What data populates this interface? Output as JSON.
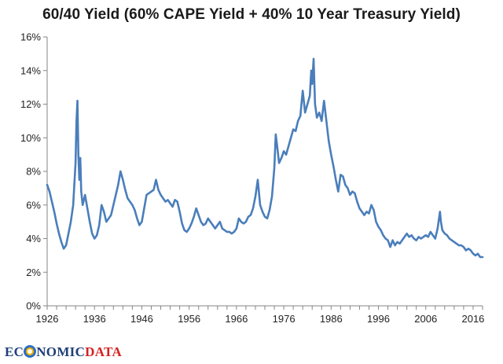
{
  "chart_data": {
    "type": "line",
    "title": "60/40 Yield (60% CAPE Yield + 40% 10 Year Treasury Yield)",
    "xlabel": "",
    "ylabel": "",
    "xlim": [
      1926,
      2018
    ],
    "ylim": [
      0,
      16
    ],
    "y_ticks": [
      0,
      2,
      4,
      6,
      8,
      10,
      12,
      14,
      16
    ],
    "y_tick_labels": [
      "0%",
      "2%",
      "4%",
      "6%",
      "8%",
      "10%",
      "12%",
      "14%",
      "16%"
    ],
    "x_ticks": [
      1926,
      1936,
      1946,
      1956,
      1966,
      1976,
      1986,
      1996,
      2006,
      2016
    ],
    "x_tick_labels": [
      "1926",
      "1936",
      "1946",
      "1956",
      "1966",
      "1976",
      "1986",
      "1996",
      "2006",
      "2016"
    ],
    "grid": false,
    "line_color": "#4a7ebb",
    "series": [
      {
        "name": "60/40 Yield",
        "x": [
          1926.0,
          1926.5,
          1927.0,
          1927.5,
          1928.0,
          1928.5,
          1929.0,
          1929.5,
          1930.0,
          1930.5,
          1931.0,
          1931.5,
          1932.0,
          1932.2,
          1932.4,
          1932.6,
          1932.8,
          1933.0,
          1933.2,
          1933.5,
          1934.0,
          1934.5,
          1935.0,
          1935.5,
          1936.0,
          1936.5,
          1937.0,
          1937.5,
          1938.0,
          1938.5,
          1939.0,
          1939.5,
          1940.0,
          1940.5,
          1941.0,
          1941.5,
          1942.0,
          1942.5,
          1943.0,
          1943.5,
          1944.0,
          1944.5,
          1945.0,
          1945.5,
          1946.0,
          1946.5,
          1947.0,
          1947.5,
          1948.0,
          1948.5,
          1949.0,
          1949.5,
          1950.0,
          1950.5,
          1951.0,
          1951.5,
          1952.0,
          1952.5,
          1953.0,
          1953.5,
          1954.0,
          1954.5,
          1955.0,
          1955.5,
          1956.0,
          1956.5,
          1957.0,
          1957.5,
          1958.0,
          1958.5,
          1959.0,
          1959.5,
          1960.0,
          1960.5,
          1961.0,
          1961.5,
          1962.0,
          1962.5,
          1963.0,
          1963.5,
          1964.0,
          1964.5,
          1965.0,
          1965.5,
          1966.0,
          1966.5,
          1967.0,
          1967.5,
          1968.0,
          1968.5,
          1969.0,
          1969.5,
          1970.0,
          1970.5,
          1971.0,
          1971.5,
          1972.0,
          1972.5,
          1973.0,
          1973.5,
          1974.0,
          1974.3,
          1974.6,
          1975.0,
          1975.5,
          1976.0,
          1976.5,
          1977.0,
          1977.5,
          1978.0,
          1978.5,
          1979.0,
          1979.5,
          1980.0,
          1980.5,
          1981.0,
          1981.5,
          1981.8,
          1982.0,
          1982.3,
          1982.6,
          1983.0,
          1983.5,
          1984.0,
          1984.5,
          1985.0,
          1985.5,
          1986.0,
          1986.5,
          1987.0,
          1987.5,
          1988.0,
          1988.5,
          1989.0,
          1989.5,
          1990.0,
          1990.5,
          1991.0,
          1991.5,
          1992.0,
          1992.5,
          1993.0,
          1993.5,
          1994.0,
          1994.5,
          1995.0,
          1995.5,
          1996.0,
          1996.5,
          1997.0,
          1997.5,
          1998.0,
          1998.5,
          1999.0,
          1999.5,
          2000.0,
          2000.5,
          2001.0,
          2001.5,
          2002.0,
          2002.5,
          2003.0,
          2003.5,
          2004.0,
          2004.5,
          2005.0,
          2005.5,
          2006.0,
          2006.5,
          2007.0,
          2007.5,
          2008.0,
          2008.5,
          2009.0,
          2009.2,
          2009.5,
          2010.0,
          2010.5,
          2011.0,
          2011.5,
          2012.0,
          2012.5,
          2013.0,
          2013.5,
          2014.0,
          2014.5,
          2015.0,
          2015.5,
          2016.0,
          2016.5,
          2017.0,
          2017.5,
          2018.0
        ],
        "values": [
          7.2,
          6.8,
          6.2,
          5.6,
          4.9,
          4.3,
          3.8,
          3.4,
          3.6,
          4.3,
          5.0,
          6.0,
          8.5,
          11.0,
          12.2,
          9.0,
          7.5,
          8.8,
          6.8,
          6.0,
          6.6,
          5.8,
          5.0,
          4.3,
          4.0,
          4.2,
          4.8,
          6.0,
          5.6,
          5.0,
          5.2,
          5.4,
          6.0,
          6.6,
          7.2,
          8.0,
          7.5,
          6.9,
          6.4,
          6.2,
          6.0,
          5.7,
          5.2,
          4.8,
          5.0,
          5.8,
          6.6,
          6.7,
          6.8,
          6.9,
          7.5,
          6.9,
          6.6,
          6.4,
          6.2,
          6.3,
          6.1,
          5.9,
          6.3,
          6.2,
          5.6,
          4.9,
          4.5,
          4.4,
          4.6,
          4.9,
          5.3,
          5.8,
          5.4,
          5.0,
          4.8,
          4.9,
          5.2,
          5.0,
          4.8,
          4.6,
          4.8,
          5.0,
          4.6,
          4.5,
          4.4,
          4.4,
          4.3,
          4.4,
          4.6,
          5.2,
          5.0,
          4.9,
          5.0,
          5.3,
          5.4,
          5.8,
          6.5,
          7.5,
          6.0,
          5.6,
          5.3,
          5.2,
          5.7,
          6.5,
          8.2,
          10.2,
          9.5,
          8.5,
          8.8,
          9.2,
          9.0,
          9.5,
          10.0,
          10.5,
          10.4,
          11.0,
          11.3,
          12.8,
          11.5,
          12.0,
          12.5,
          14.0,
          13.2,
          14.7,
          12.0,
          11.2,
          11.5,
          11.0,
          12.2,
          11.0,
          9.8,
          9.0,
          8.3,
          7.5,
          6.8,
          7.8,
          7.7,
          7.2,
          7.0,
          6.6,
          6.8,
          6.7,
          6.2,
          5.8,
          5.6,
          5.4,
          5.6,
          5.5,
          6.0,
          5.7,
          5.0,
          4.7,
          4.5,
          4.2,
          4.0,
          3.9,
          3.5,
          3.9,
          3.6,
          3.8,
          3.7,
          3.9,
          4.1,
          4.3,
          4.1,
          4.2,
          4.0,
          3.9,
          4.1,
          4.0,
          4.1,
          4.2,
          4.1,
          4.4,
          4.2,
          4.0,
          4.6,
          5.6,
          5.0,
          4.5,
          4.3,
          4.2,
          4.0,
          3.9,
          3.8,
          3.7,
          3.6,
          3.6,
          3.5,
          3.3,
          3.4,
          3.3,
          3.1,
          3.0,
          3.1,
          2.9,
          2.9
        ]
      }
    ]
  },
  "watermark": {
    "part1": "EC",
    "part2": "NOMIC",
    "part3": "DATA"
  }
}
